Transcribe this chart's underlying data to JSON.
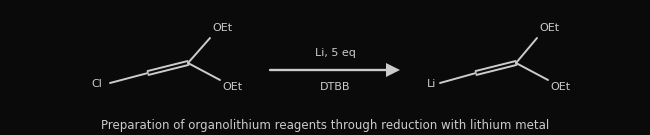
{
  "background_color": "#0a0a0a",
  "caption": "Preparation of organolithium reagents through reduction with lithium metal",
  "caption_fontsize": 8.5,
  "caption_color": "#cccccc",
  "arrow_above": "Li, 5 eq",
  "arrow_below": "DTBB",
  "line_color": "#cccccc",
  "text_color": "#cccccc",
  "lw": 1.4,
  "fig_width": 6.5,
  "fig_height": 1.35,
  "dpi": 100
}
